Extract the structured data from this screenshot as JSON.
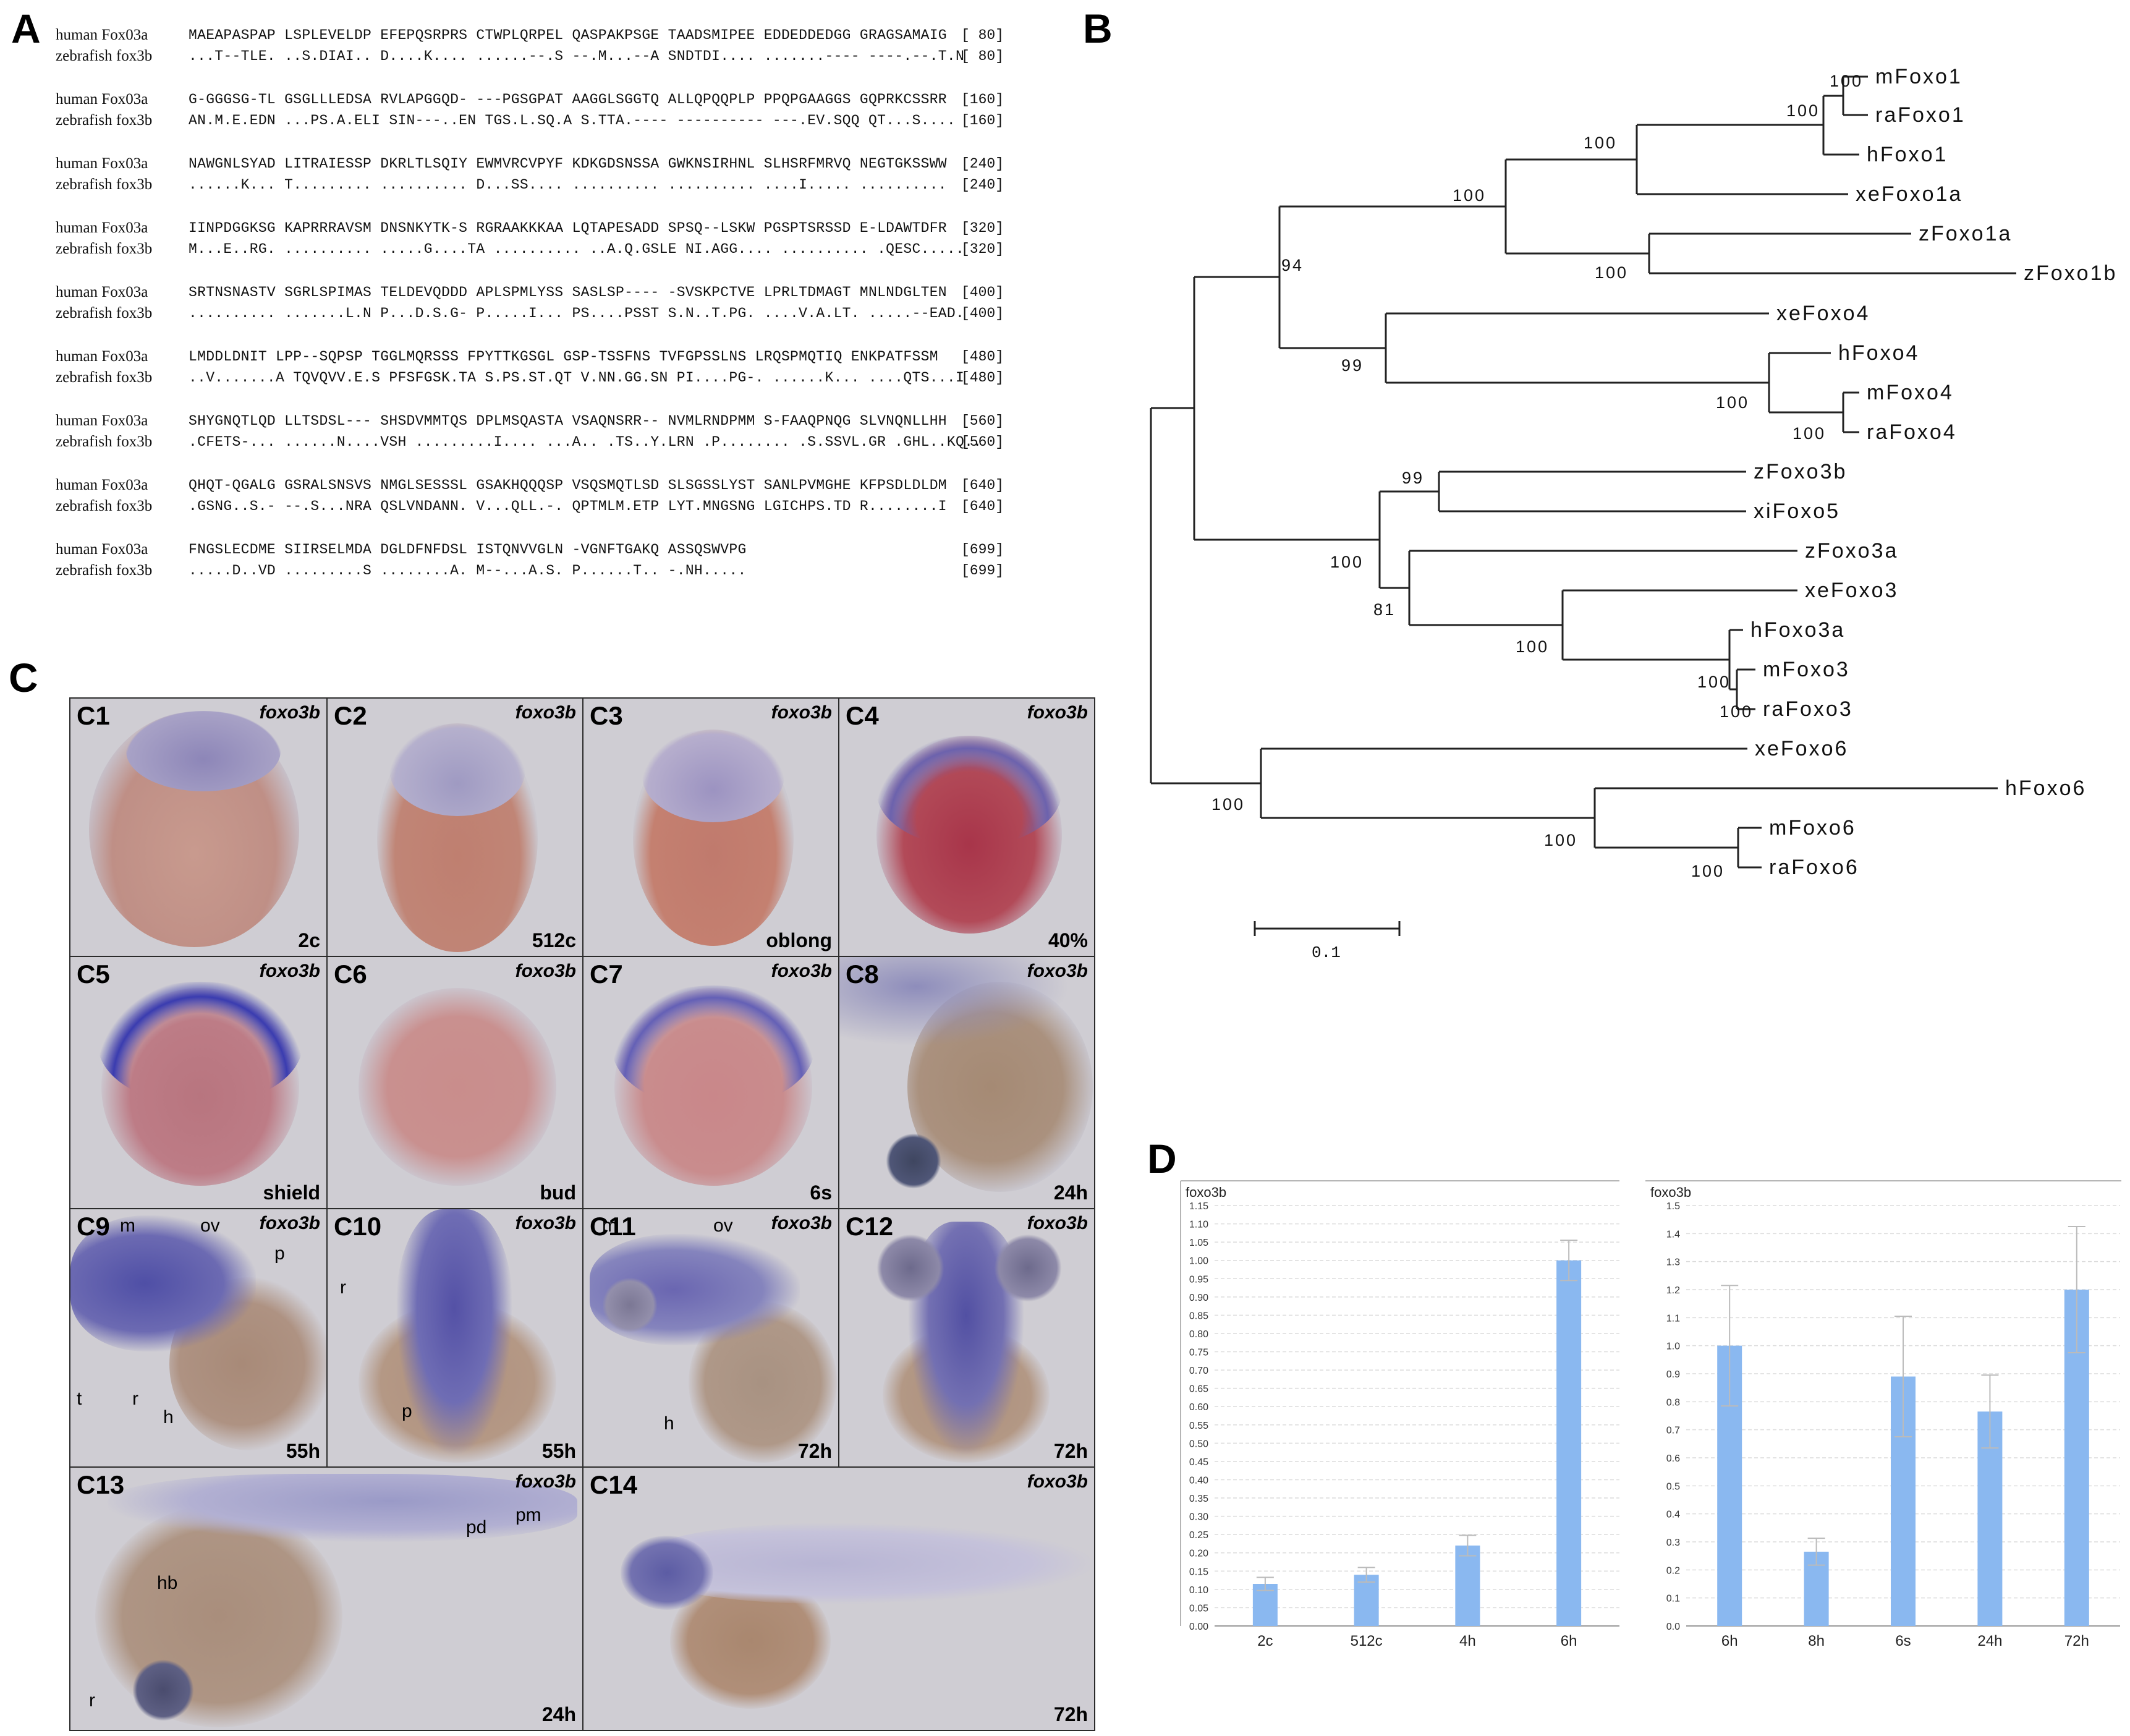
{
  "panel_labels": {
    "a": "A",
    "b": "B",
    "c": "C",
    "d": "D"
  },
  "alignment": {
    "blocks": [
      {
        "rows": [
          {
            "name": "human Fox03a",
            "seq": "MAEAPASPAP LSPLEVELDP EFEPQSRPRS CTWPLQRPEL QASPAKPSGE TAADSMIPEE EDDEDDEDGG GRAGSAMAIG",
            "num": "[ 80]"
          },
          {
            "name": "zebrafish fox3b",
            "seq": "...T--TLE. ..S.DIAI.. D....K.... ......--.S --.M...--A SNDTDI.... .......---- ----.--.T.N",
            "num": "[ 80]"
          }
        ]
      },
      {
        "rows": [
          {
            "name": "human Fox03a",
            "seq": "G-GGGSG-TL GSGLLLEDSA RVLAPGGQD- ---PGSGPAT AAGGLSGGTQ ALLQPQQPLP PPQPGAAGGS GQPRKCSSRR",
            "num": "[160]"
          },
          {
            "name": "zebrafish fox3b",
            "seq": "AN.M.E.EDN ...PS.A.ELI SIN---..EN TGS.L.SQ.A S.TTA.---- ---------- ---.EV.SQQ QT...S....",
            "num": "[160]"
          }
        ]
      },
      {
        "rows": [
          {
            "name": "human Fox03a",
            "seq": "NAWGNLSYAD LITRAIESSP DKRLTLSQIY EWMVRCVPYF KDKGDSNSSA GWKNSIRHNL SLHSRFMRVQ NEGTGKSSWW",
            "num": "[240]"
          },
          {
            "name": "zebrafish fox3b",
            "seq": "......K... T......... .......... D...SS.... .......... .......... ....I..... ..........",
            "num": "[240]"
          }
        ]
      },
      {
        "rows": [
          {
            "name": "human Fox03a",
            "seq": "IINPDGGKSG KAPRRRAVSM DNSNKYTK-S RGRAAKKKAA LQTAPESADD SPSQ--LSKW PGSPTSRSSD E-LDAWTDFR",
            "num": "[320]"
          },
          {
            "name": "zebrafish fox3b",
            "seq": "M...E..RG. .......... .....G....TA .......... ..A.Q.GSLE NI.AGG.... .......... .QESC.....",
            "num": "[320]"
          }
        ]
      },
      {
        "rows": [
          {
            "name": "human Fox03a",
            "seq": "SRTNSNASTV SGRLSPIMAS TELDEVQDDD APLSPMLYSS SASLSP---- -SVSKPCTVE LPRLTDMAGT MNLNDGLTEN",
            "num": "[400]"
          },
          {
            "name": "zebrafish fox3b",
            "seq": ".......... .......L.N P...D.S.G- P.....I... PS....PSST S.N..T.PG. ....V.A.LT. .....--EAD.",
            "num": "[400]"
          }
        ]
      },
      {
        "rows": [
          {
            "name": "human Fox03a",
            "seq": "LMDDLDNIT LPP--SQPSP TGGLMQRSSS FPYTTKGSGL GSP-TSSFNS TVFGPSSLNS LRQSPMQTIQ ENKPATFSSM",
            "num": "[480]"
          },
          {
            "name": "zebrafish fox3b",
            "seq": "..V.......A TQVQVV.E.S PFSFGSK.TA S.PS.ST.QT V.NN.GG.SN PI....PG-. ......K... ....QTS...I",
            "num": "[480]"
          }
        ]
      },
      {
        "rows": [
          {
            "name": "human Fox03a",
            "seq": "SHYGNQTLQD LLTSDSL--- SHSDVMMTQS DPLMSQASTA VSAQNSRR-- NVMLRNDPMM S-FAAQPNQG SLVNQNLLHH",
            "num": "[560]"
          },
          {
            "name": "zebrafish fox3b",
            "seq": ".CFETS-... ......N....VSH .........I.... ...A.. .TS..Y.LRN .P........ .S.SSVL.GR .GHL..KQ..",
            "num": "[560]"
          }
        ]
      },
      {
        "rows": [
          {
            "name": "human Fox03a",
            "seq": "QHQT-QGALG GSRALSNSVS NMGLSESSSL GSAKHQQQSP VSQSMQTLSD SLSGSSLYST SANLPVMGHE KFPSDLDLDM",
            "num": "[640]"
          },
          {
            "name": "zebrafish fox3b",
            "seq": ".GSNG..S.- --.S...NRA QSLVNDANN. V...QLL.-. QPTMLM.ETP LYT.MNGSNG LGICHPS.TD R........I",
            "num": "[640]"
          }
        ]
      },
      {
        "rows": [
          {
            "name": "human Fox03a",
            "seq": "FNGSLECDME SIIRSELMDA DGLDFNFDSL ISTQNVVGLN -VGNFTGAKQ ASSQSWVPG",
            "num": "[699]"
          },
          {
            "name": "zebrafish fox3b",
            "seq": ".....D..VD .........S ........A. M--...A.S. P......T.. -.NH.....",
            "num": "[699]"
          }
        ]
      }
    ]
  },
  "tree": {
    "leaves": [
      "mFoxo1",
      "raFoxo1",
      "hFoxo1",
      "xeFoxo1a",
      "zFoxo1a",
      "zFoxo1b",
      "xeFoxo4",
      "hFoxo4",
      "mFoxo4",
      "raFoxo4",
      "zFoxo3b",
      "xiFoxo5",
      "zFoxo3a",
      "xeFoxo3",
      "hFoxo3a",
      "mFoxo3",
      "raFoxo3",
      "xeFoxo6",
      "hFoxo6",
      "mFoxo6",
      "raFoxo6"
    ],
    "bootstrap": [
      "100",
      "100",
      "100",
      "100",
      "100",
      "94",
      "99",
      "100",
      "100",
      "99",
      "100",
      "81",
      "100",
      "100",
      "100",
      "100",
      "100",
      "100"
    ],
    "scale_label": "0.1"
  },
  "embryos": {
    "gene": "foxo3b",
    "cells": [
      {
        "id": "C1",
        "stage": "2c"
      },
      {
        "id": "C2",
        "stage": "512c"
      },
      {
        "id": "C3",
        "stage": "oblong"
      },
      {
        "id": "C4",
        "stage": "40%"
      },
      {
        "id": "C5",
        "stage": "shield"
      },
      {
        "id": "C6",
        "stage": "bud"
      },
      {
        "id": "C7",
        "stage": "6s"
      },
      {
        "id": "C8",
        "stage": "24h"
      },
      {
        "id": "C9",
        "stage": "55h",
        "annotations": [
          "m",
          "ov",
          "p",
          "t",
          "r",
          "h"
        ]
      },
      {
        "id": "C10",
        "stage": "55h",
        "annotations": [
          "r",
          "p"
        ]
      },
      {
        "id": "C11",
        "stage": "72h",
        "annotations": [
          "m",
          "ov",
          "h"
        ]
      },
      {
        "id": "C12",
        "stage": "72h"
      },
      {
        "id": "C13",
        "stage": "24h",
        "annotations": [
          "pd",
          "pm",
          "hb",
          "r"
        ]
      },
      {
        "id": "C14",
        "stage": "72h"
      }
    ]
  },
  "chart_data": [
    {
      "type": "bar",
      "title": "foxo3b",
      "categories": [
        "2c",
        "512c",
        "4h",
        "6h"
      ],
      "values": [
        0.115,
        0.14,
        0.22,
        1.0
      ],
      "errors": [
        0.018,
        0.02,
        0.028,
        0.055
      ],
      "ylim": [
        0,
        1.15
      ],
      "yticks": [
        "0.00",
        "0.05",
        "0.10",
        "0.15",
        "0.20",
        "0.25",
        "0.30",
        "0.35",
        "0.40",
        "0.45",
        "0.50",
        "0.55",
        "0.60",
        "0.65",
        "0.70",
        "0.75",
        "0.80",
        "0.85",
        "0.90",
        "0.95",
        "1.00",
        "1.05",
        "1.10",
        "1.15"
      ],
      "bar_color": "#8ab8f0",
      "grid": true
    },
    {
      "type": "bar",
      "title": "foxo3b",
      "categories": [
        "6h",
        "8h",
        "6s",
        "24h",
        "72h"
      ],
      "values": [
        1.0,
        0.265,
        0.89,
        0.765,
        1.2
      ],
      "errors": [
        0.215,
        0.048,
        0.215,
        0.13,
        0.225
      ],
      "ylim": [
        0,
        1.5
      ],
      "yticks": [
        "0.0",
        "0.1",
        "0.2",
        "0.3",
        "0.4",
        "0.5",
        "0.6",
        "0.7",
        "0.8",
        "0.9",
        "1.0",
        "1.1",
        "1.2",
        "1.3",
        "1.4",
        "1.5"
      ],
      "bar_color": "#8ab8f0",
      "grid": true
    }
  ]
}
